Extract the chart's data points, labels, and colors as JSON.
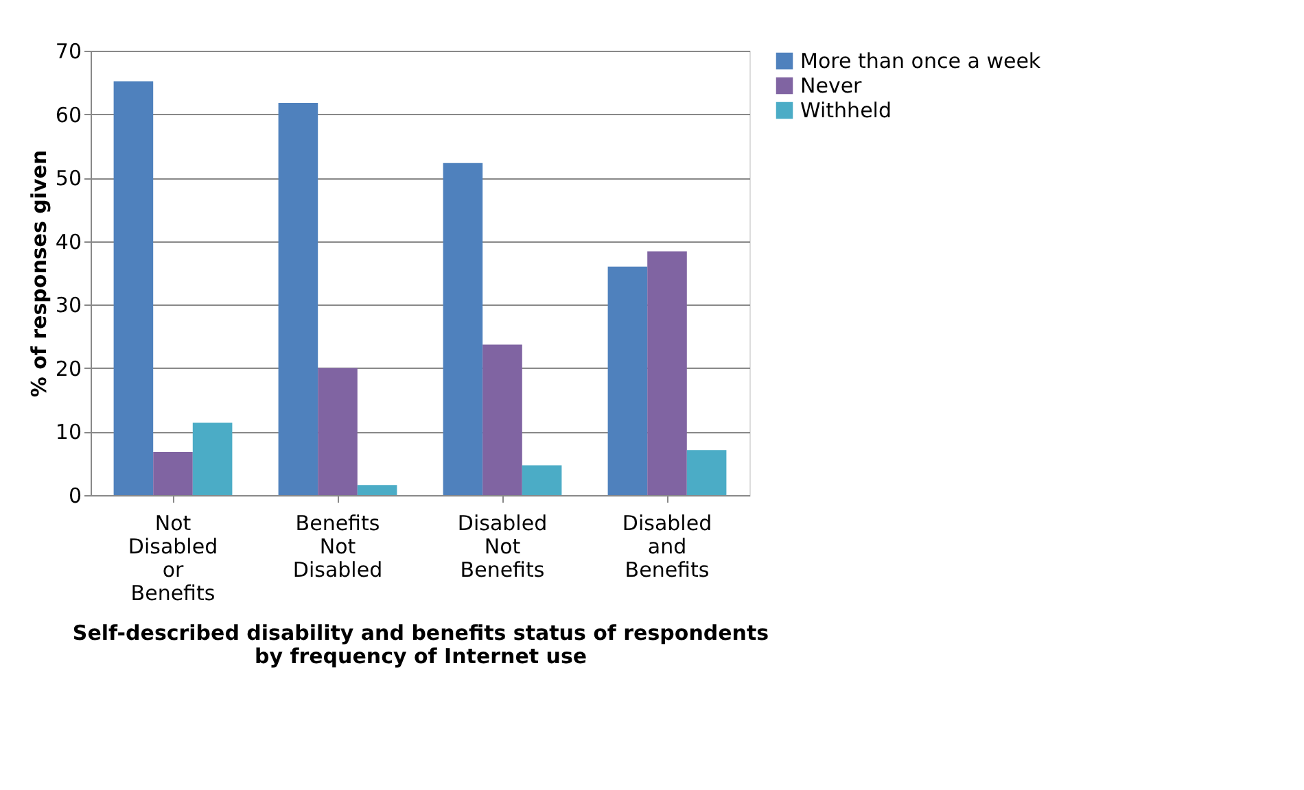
{
  "chart_data": {
    "type": "bar",
    "xlabel": "Self-described disability and benefits status of respondents by frequency of Internet use",
    "ylabel": "% of responses given",
    "categories": [
      "Not Disabled or Benefits",
      "Benefits Not Disabled",
      "Disabled Not Benefits",
      "Disabled and Benefits"
    ],
    "series": [
      {
        "name": "More than once a week",
        "color": "#4f81bd",
        "values": [
          65.2,
          61.8,
          52.3,
          36.0
        ]
      },
      {
        "name": "Never",
        "color": "#8064a2",
        "values": [
          6.8,
          20.0,
          23.7,
          38.4
        ]
      },
      {
        "name": "Withheld",
        "color": "#4bacc6",
        "values": [
          11.4,
          1.6,
          4.7,
          7.1
        ]
      }
    ],
    "ylim": [
      0,
      70
    ],
    "yticks": [
      0,
      10,
      20,
      30,
      40,
      50,
      60,
      70
    ],
    "grid": "y",
    "legend": "right"
  }
}
